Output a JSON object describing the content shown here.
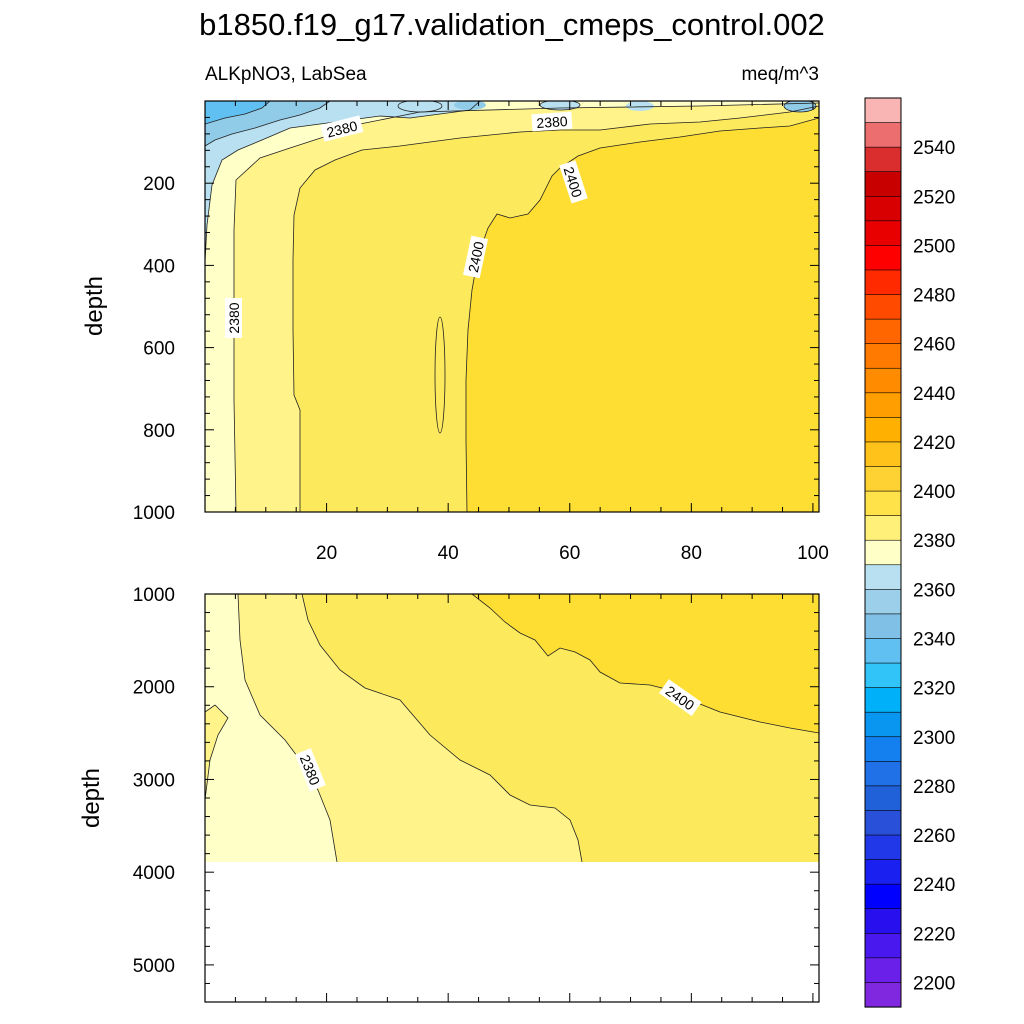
{
  "chart_data": {
    "type": "contour",
    "title": "b1850.f19_g17.validation_cmeps_control.002",
    "panels": [
      {
        "name": "upper",
        "left_label": "ALKpNO3, LabSea",
        "right_label": "meq/m^3",
        "ylabel": "depth",
        "ylim": [
          0,
          1000
        ],
        "y_ticks": [
          200,
          400,
          600,
          800,
          1000
        ],
        "xlim": [
          0,
          101
        ],
        "x_ticks": [
          20,
          40,
          60,
          80,
          100
        ],
        "contour_labels": [
          {
            "text": "2380"
          },
          {
            "text": "2380"
          },
          {
            "text": "2400"
          },
          {
            "text": "2400"
          },
          {
            "text": "2380"
          }
        ]
      },
      {
        "name": "lower",
        "ylabel": "depth",
        "ylim": [
          1000,
          5400
        ],
        "y_ticks": [
          1000,
          2000,
          3000,
          4000,
          5000
        ],
        "xlim": [
          0,
          101
        ],
        "data_bottom_depth": 3850,
        "contour_labels": [
          {
            "text": "2400"
          },
          {
            "text": "2380"
          }
        ]
      }
    ],
    "colorbar": {
      "labels": [
        "2540",
        "2520",
        "2500",
        "2480",
        "2460",
        "2440",
        "2420",
        "2400",
        "2380",
        "2360",
        "2340",
        "2320",
        "2300",
        "2280",
        "2260",
        "2240",
        "2220",
        "2200"
      ],
      "levels_top_to_bottom": [
        2550,
        2540,
        2530,
        2520,
        2510,
        2500,
        2490,
        2480,
        2470,
        2460,
        2450,
        2440,
        2430,
        2420,
        2410,
        2400,
        2390,
        2380,
        2370,
        2360,
        2350,
        2340,
        2330,
        2320,
        2310,
        2300,
        2290,
        2280,
        2270,
        2260,
        2250,
        2240,
        2230,
        2220,
        2210,
        2200
      ],
      "colors_top_to_bottom": [
        "#f9b4b4",
        "#ec6e6e",
        "#da2e2e",
        "#c80000",
        "#d80000",
        "#e80000",
        "#ff0000",
        "#ff2a00",
        "#ff4a00",
        "#ff6600",
        "#ff7a00",
        "#ff8c00",
        "#ff9e00",
        "#ffb000",
        "#ffc21a",
        "#ffd233",
        "#ffe24a",
        "#fff07a",
        "#ffffc8",
        "#b8e0f0",
        "#9ccfea",
        "#80c0e6",
        "#60c0f2",
        "#30c4f8",
        "#00b0f8",
        "#0896f0",
        "#1480f0",
        "#2070e8",
        "#2060d8",
        "#2850d8",
        "#2038e8",
        "#1a20f0",
        "#0000ff",
        "#2810ee",
        "#4818ee",
        "#6a20e8",
        "#8028e0"
      ]
    },
    "fill_colors": {
      "c2330": "#60c0f2",
      "c2340": "#90cbe8",
      "c2350": "#b8e0f0",
      "c2370": "#ffffc8",
      "c2380": "#fff38a",
      "c2390": "#fde95c",
      "c2400": "#ffde33"
    }
  }
}
